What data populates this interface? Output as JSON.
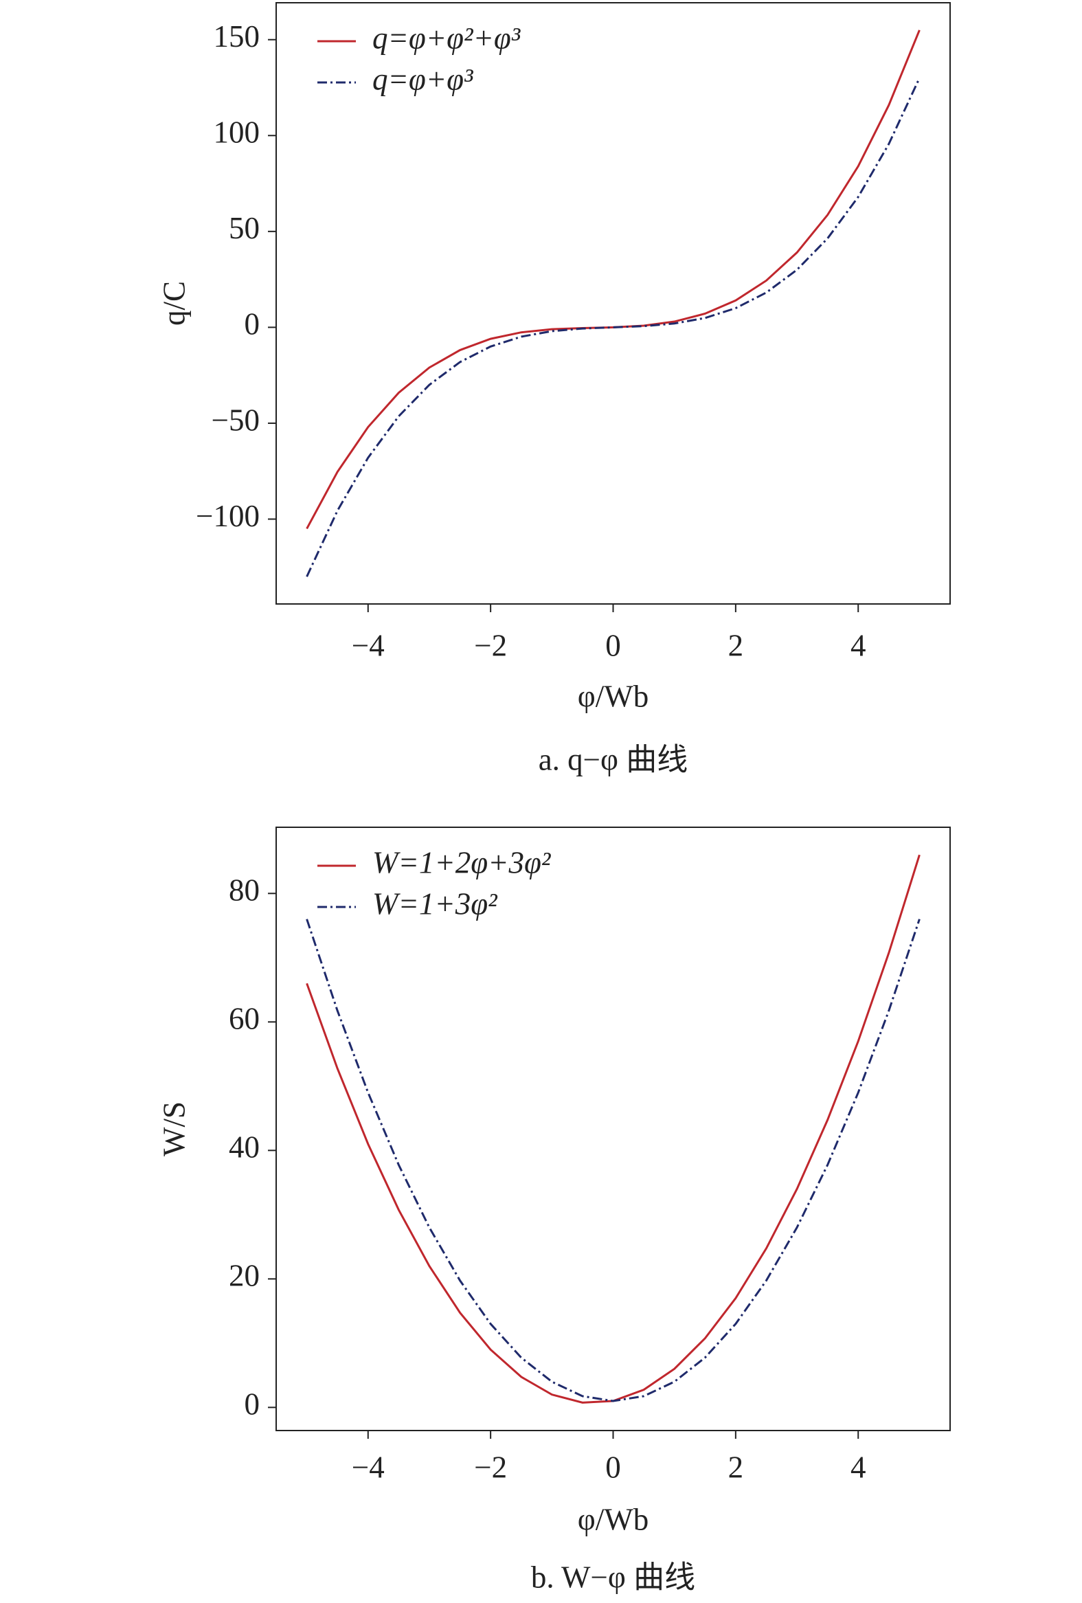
{
  "chart_data": [
    {
      "type": "line",
      "caption": "a. q−φ 曲线",
      "x_label": "φ/Wb",
      "y_label": "q/C",
      "legend": "upper left",
      "grid": false,
      "x": [
        -5,
        -4.5,
        -4,
        -3.5,
        -3,
        -2.5,
        -2,
        -1.5,
        -1,
        -0.5,
        0,
        0.5,
        1,
        1.5,
        2,
        2.5,
        3,
        3.5,
        4,
        4.5,
        5
      ],
      "series": [
        {
          "name": "q=φ+φ²+φ³",
          "color": "#c0272d",
          "dash": false,
          "values": [
            -105,
            -75.375,
            -52,
            -34.125,
            -21,
            -11.875,
            -6,
            -2.625,
            -1,
            -0.375,
            0,
            0.875,
            3,
            7.125,
            14,
            24.375,
            39,
            58.625,
            84,
            115.875,
            155
          ]
        },
        {
          "name": "q=φ+φ³",
          "color": "#1f2a6b",
          "dash": true,
          "values": [
            -130,
            -95.625,
            -68,
            -46.375,
            -30,
            -18.125,
            -10,
            -4.875,
            -2,
            -0.625,
            0,
            0.625,
            2,
            4.875,
            10,
            18.125,
            30,
            46.375,
            68,
            95.625,
            130
          ]
        }
      ],
      "xlim": [
        -5.5,
        5.5
      ],
      "ylim": [
        -144.25,
        169.25
      ],
      "xticks": [
        {
          "value": -4,
          "label": "−4"
        },
        {
          "value": -2,
          "label": "−2"
        },
        0,
        2,
        4
      ],
      "yticks": [
        {
          "value": -100,
          "label": "−100"
        },
        {
          "value": -50,
          "label": "−50"
        },
        0,
        50,
        100,
        150
      ]
    },
    {
      "type": "line",
      "caption": "b. W−φ 曲线",
      "x_label": "φ/Wb",
      "y_label": "W/S",
      "legend": "upper left",
      "grid": false,
      "x": [
        -5,
        -4.5,
        -4,
        -3.5,
        -3,
        -2.5,
        -2,
        -1.5,
        -1,
        -0.5,
        0,
        0.5,
        1,
        1.5,
        2,
        2.5,
        3,
        3.5,
        4,
        4.5,
        5
      ],
      "series": [
        {
          "name": "W=1+2φ+3φ²",
          "color": "#c0272d",
          "dash": false,
          "values": [
            66,
            52.75,
            41,
            30.75,
            22,
            14.75,
            9,
            4.75,
            2,
            0.75,
            1,
            2.75,
            6,
            10.75,
            17,
            24.75,
            34,
            44.75,
            57,
            70.75,
            86
          ]
        },
        {
          "name": "W=1+3φ²",
          "color": "#1f2a6b",
          "dash": true,
          "values": [
            76,
            61.75,
            49,
            37.75,
            28,
            19.75,
            13,
            7.75,
            4,
            1.75,
            1,
            1.75,
            4,
            7.75,
            13,
            19.75,
            28,
            37.75,
            49,
            61.75,
            76
          ]
        }
      ],
      "xlim": [
        -5.5,
        5.5
      ],
      "ylim": [
        -3.6,
        90.3
      ],
      "xticks": [
        {
          "value": -4,
          "label": "−4"
        },
        {
          "value": -2,
          "label": "−2"
        },
        0,
        2,
        4
      ],
      "yticks": [
        0,
        20,
        40,
        60,
        80
      ]
    }
  ]
}
